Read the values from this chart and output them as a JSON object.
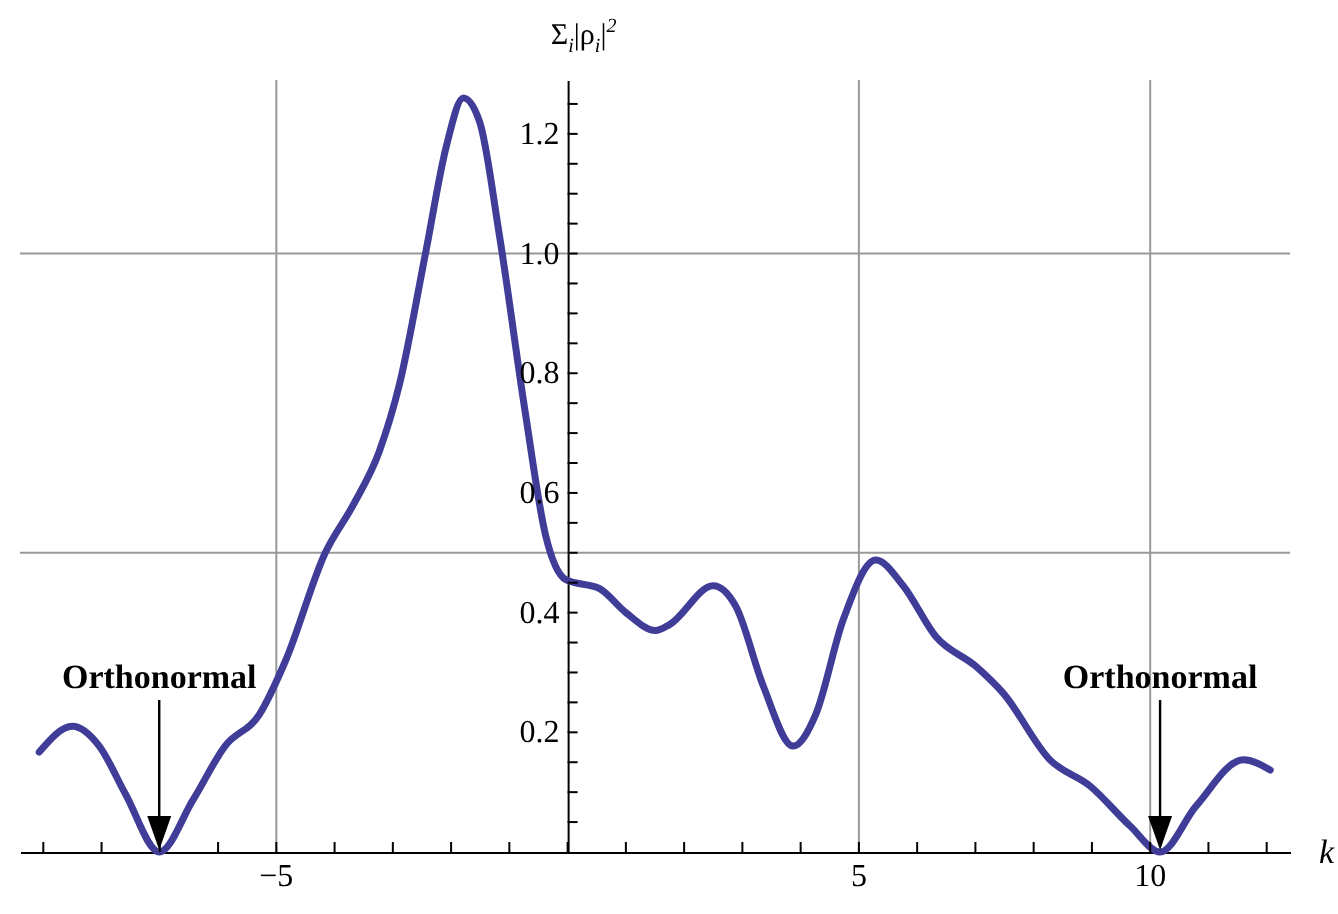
{
  "chart_data": {
    "type": "line",
    "xlabel": "k",
    "ylabel": "Σ$_{i}$|ρ$_{i}$|$^{2}$",
    "xlim": [
      -9.4,
      12.4
    ],
    "ylim": [
      0,
      1.29
    ],
    "xticks": [
      {
        "value": -9,
        "label": null
      },
      {
        "value": -8,
        "label": null
      },
      {
        "value": -7,
        "label": null
      },
      {
        "value": -6,
        "label": null
      },
      {
        "value": -5,
        "label": "−5"
      },
      {
        "value": -4,
        "label": null
      },
      {
        "value": -3,
        "label": null
      },
      {
        "value": -2,
        "label": null
      },
      {
        "value": -1,
        "label": null
      },
      {
        "value": 0,
        "label": null
      },
      {
        "value": 1,
        "label": null
      },
      {
        "value": 2,
        "label": null
      },
      {
        "value": 3,
        "label": null
      },
      {
        "value": 4,
        "label": null
      },
      5,
      {
        "value": 6,
        "label": null
      },
      {
        "value": 7,
        "label": null
      },
      {
        "value": 8,
        "label": null
      },
      {
        "value": 9,
        "label": null
      },
      10,
      {
        "value": 11,
        "label": null
      },
      {
        "value": 12,
        "label": null
      }
    ],
    "yticks": [
      {
        "value": 0.05,
        "label": null
      },
      {
        "value": 0.1,
        "label": null
      },
      {
        "value": 0.15,
        "label": null
      },
      0.2,
      {
        "value": 0.25,
        "label": null
      },
      {
        "value": 0.3,
        "label": null
      },
      {
        "value": 0.35,
        "label": null
      },
      0.4,
      {
        "value": 0.45,
        "label": null
      },
      {
        "value": 0.5,
        "label": null
      },
      {
        "value": 0.55,
        "label": null
      },
      0.6,
      {
        "value": 0.65,
        "label": null
      },
      {
        "value": 0.7,
        "label": null
      },
      {
        "value": 0.75,
        "label": null
      },
      0.8,
      {
        "value": 0.85,
        "label": null
      },
      {
        "value": 0.9,
        "label": null
      },
      {
        "value": 0.95,
        "label": null
      },
      {
        "value": 1.0,
        "label": "1.0"
      },
      {
        "value": 1.05,
        "label": null
      },
      {
        "value": 1.1,
        "label": null
      },
      {
        "value": 1.15,
        "label": null
      },
      1.2,
      {
        "value": 1.25,
        "label": null
      }
    ],
    "ref_lines": [
      {
        "axis": "x",
        "value": -5,
        "color": "#999999"
      },
      {
        "axis": "x",
        "value": 5,
        "color": "#999999"
      },
      {
        "axis": "x",
        "value": 10,
        "color": "#999999"
      },
      {
        "axis": "y",
        "value": 0.5,
        "color": "#999999"
      },
      {
        "axis": "y",
        "value": 1.0,
        "color": "#999999"
      }
    ],
    "annotations": [
      "Orthonormal",
      "Orthonormal"
    ],
    "x": [
      -9.07,
      -8.5,
      -8.04,
      -7.59,
      -7.01,
      -6.43,
      -5.88,
      -5.29,
      -4.84,
      -4.16,
      -3.68,
      -3.23,
      -2.89,
      -2.44,
      -2.08,
      -1.79,
      -1.51,
      -1.17,
      -0.72,
      -0.38,
      -0.03,
      0.55,
      1.0,
      1.51,
      1.75,
      2.5,
      2.89,
      3.36,
      3.87,
      4.26,
      4.73,
      5.29,
      5.76,
      6.32,
      7.01,
      7.48,
      8.28,
      8.97,
      9.66,
      10.17,
      10.79,
      11.6,
      12.06
    ],
    "series": [
      {
        "color": "#403d99",
        "values": [
          0.167,
          0.21,
          0.177,
          0.097,
          0.0,
          0.087,
          0.177,
          0.23,
          0.32,
          0.5,
          0.58,
          0.67,
          0.78,
          1.0,
          1.18,
          1.26,
          1.22,
          1.03,
          0.73,
          0.53,
          0.455,
          0.44,
          0.4,
          0.37,
          0.38,
          0.445,
          0.41,
          0.277,
          0.177,
          0.23,
          0.388,
          0.488,
          0.445,
          0.36,
          0.31,
          0.265,
          0.154,
          0.11,
          0.043,
          0.0,
          0.077,
          0.154,
          0.137
        ]
      }
    ]
  }
}
